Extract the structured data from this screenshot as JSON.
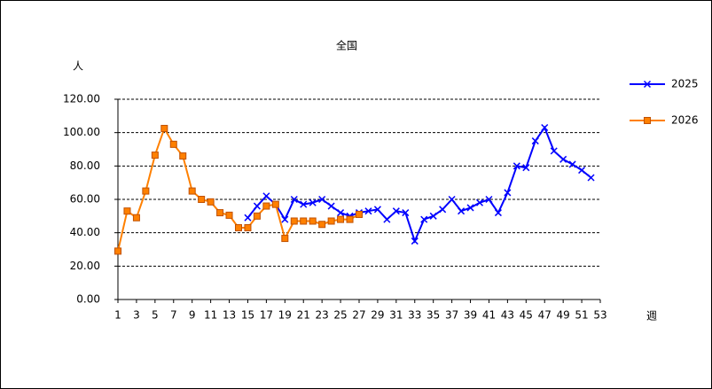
{
  "chart_data": {
    "type": "line",
    "title": "全国",
    "ylabel": "人",
    "xlabel": "週",
    "x": [
      1,
      2,
      3,
      4,
      5,
      6,
      7,
      8,
      9,
      10,
      11,
      12,
      13,
      14,
      15,
      16,
      17,
      18,
      19,
      20,
      21,
      22,
      23,
      24,
      25,
      26,
      27,
      28,
      29,
      30,
      31,
      32,
      33,
      34,
      35,
      36,
      37,
      38,
      39,
      40,
      41,
      42,
      43,
      44,
      45,
      46,
      47,
      48,
      49,
      50,
      51,
      52,
      53
    ],
    "series": [
      {
        "name": "2025",
        "color": "#0000ff",
        "marker": "x",
        "values": [
          null,
          null,
          null,
          null,
          null,
          null,
          null,
          null,
          null,
          null,
          null,
          null,
          null,
          null,
          49,
          56,
          62,
          57,
          48,
          60,
          57,
          58,
          60,
          56,
          52,
          50,
          52,
          53,
          54,
          48,
          53,
          52,
          35,
          48,
          50,
          54,
          60,
          53,
          55,
          58,
          60,
          52,
          64,
          80,
          79,
          95,
          103,
          89,
          84,
          81,
          77.5,
          73,
          null
        ]
      },
      {
        "name": "2026",
        "color": "#ff8000",
        "marker": "square",
        "values": [
          29,
          53,
          49,
          65,
          86.5,
          102.5,
          93,
          86,
          65,
          60,
          58.5,
          52,
          50.5,
          43,
          43,
          50,
          56,
          57,
          36.6,
          47,
          47,
          47,
          45,
          47,
          48,
          48,
          51,
          null,
          null,
          null,
          null,
          null,
          null,
          null,
          null,
          null,
          null,
          null,
          null,
          null,
          null,
          null,
          null,
          null,
          null,
          null,
          null,
          null,
          null,
          null,
          null,
          null,
          null
        ]
      }
    ],
    "xlim": [
      1,
      53
    ],
    "xticks": [
      1,
      3,
      5,
      7,
      9,
      11,
      13,
      15,
      17,
      19,
      21,
      23,
      25,
      27,
      29,
      31,
      33,
      35,
      37,
      39,
      41,
      43,
      45,
      47,
      49,
      51,
      53
    ],
    "ylim": [
      0,
      120
    ],
    "yticks": [
      {
        "value": 0,
        "label": "0.00"
      },
      {
        "value": 20,
        "label": "20.00"
      },
      {
        "value": 40,
        "label": "40.00"
      },
      {
        "value": 60,
        "label": "60.00"
      },
      {
        "value": 80,
        "label": "80.00"
      },
      {
        "value": 100,
        "label": "100.00"
      },
      {
        "value": 120,
        "label": "120.00"
      }
    ],
    "grid": true,
    "legend": "right"
  }
}
